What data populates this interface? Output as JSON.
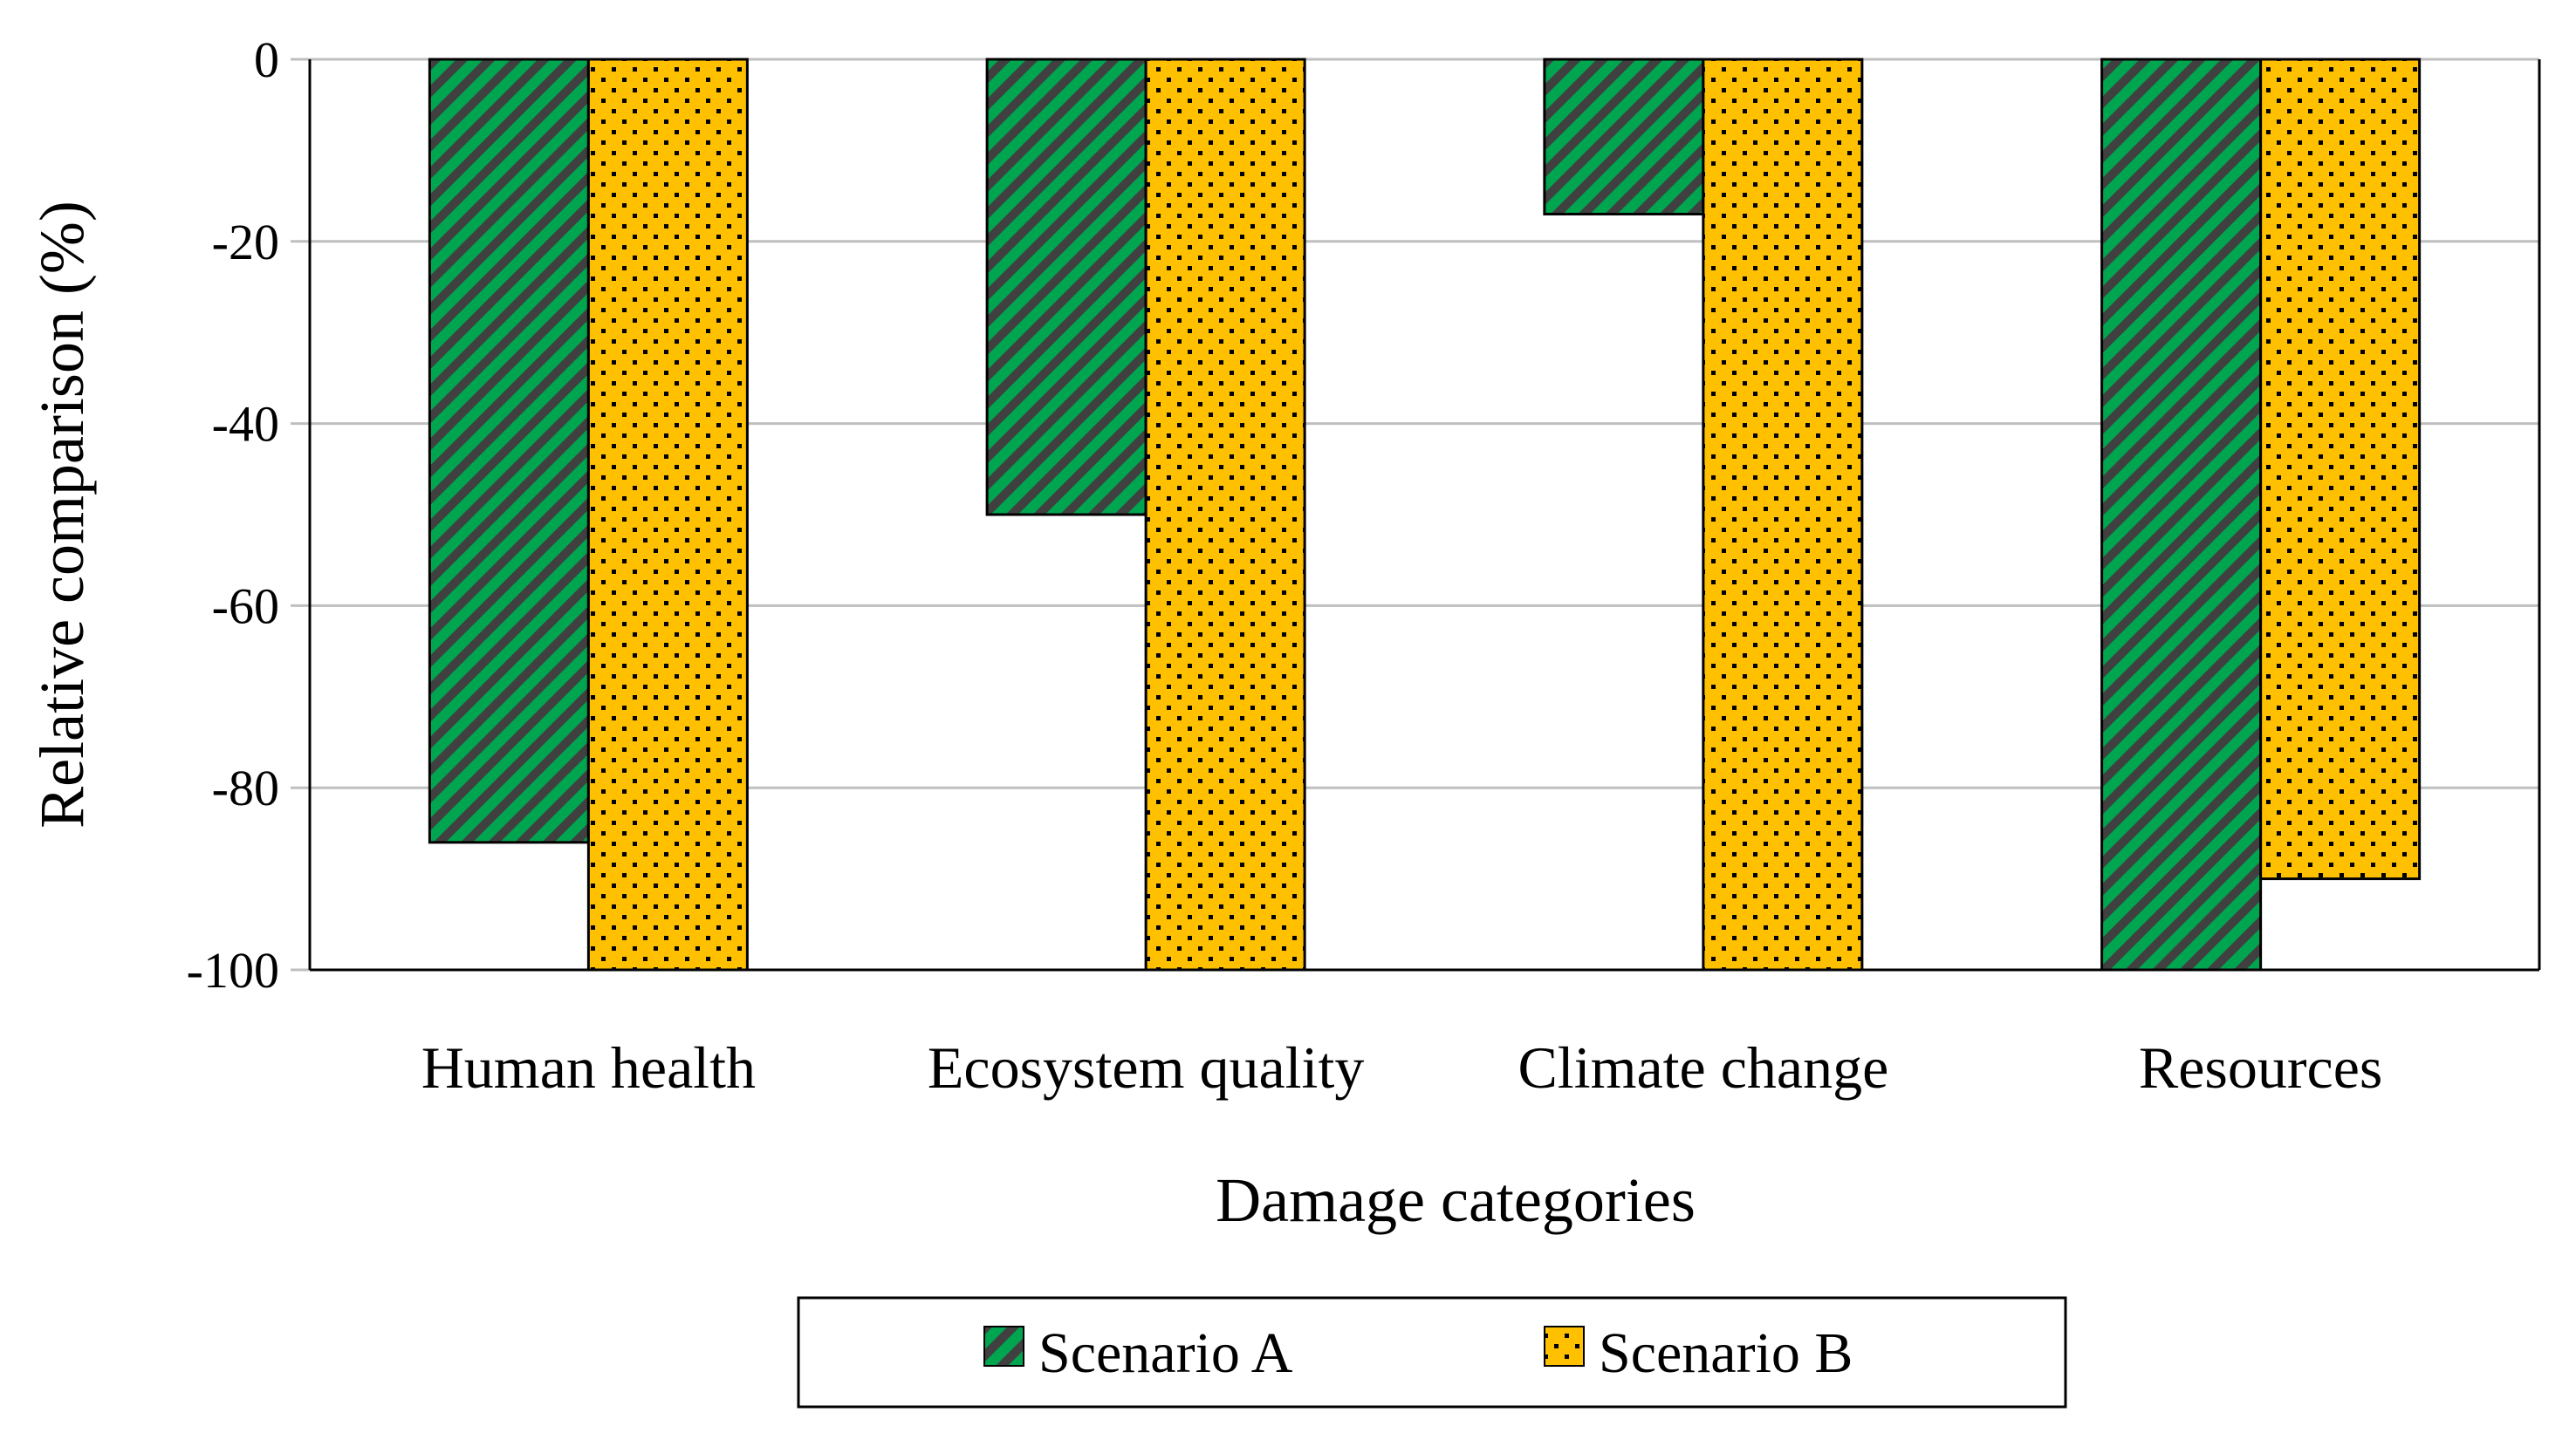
{
  "chart_data": {
    "type": "bar",
    "title": "",
    "xlabel": "Damage categories",
    "ylabel": "Relative comparison (%)",
    "ylim": [
      -100,
      0
    ],
    "yticks": [
      0,
      -20,
      -40,
      -60,
      -80,
      -100
    ],
    "ytick_labels": [
      "0",
      "-20",
      "-40",
      "-60",
      "-80",
      "-100"
    ],
    "grid": true,
    "categories": [
      "Human health",
      "Ecosystem quality",
      "Climate change",
      "Resources"
    ],
    "series": [
      {
        "name": "Scenario A",
        "values": [
          -86,
          -50,
          -17,
          -100
        ],
        "color": "#00A550",
        "pattern": "diagonal-stripes"
      },
      {
        "name": "Scenario B",
        "values": [
          -100,
          -100,
          -100,
          -90
        ],
        "color": "#FFC000",
        "pattern": "dots"
      }
    ],
    "legend_position": "bottom"
  }
}
